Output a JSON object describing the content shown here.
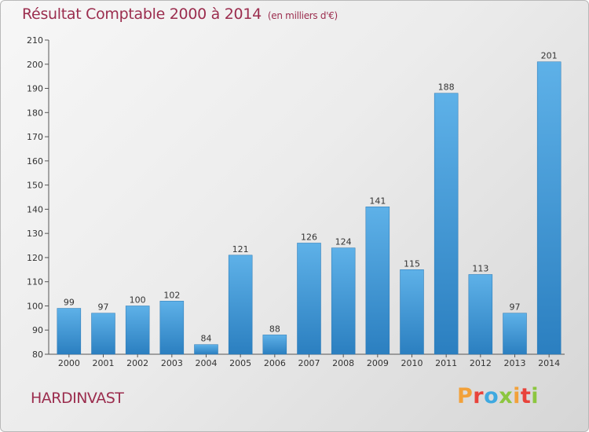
{
  "header": {
    "title": "Résultat Comptable 2000 à 2014",
    "subtitle": "(en milliers d'€)"
  },
  "commune": "HARDINVAST",
  "logo": {
    "letters": [
      "P",
      "r",
      "o",
      "x",
      "i",
      "t",
      "i"
    ],
    "colors": [
      "#f2a13a",
      "#e8433b",
      "#3fa9e0",
      "#8cc63f",
      "#f2a13a",
      "#e8433b",
      "#8cc63f"
    ]
  },
  "colors": {
    "bar_light": "#5eb1e8",
    "bar_dark": "#2b7fc0",
    "title": "#9b2d4e"
  },
  "chart_data": {
    "type": "bar",
    "title": "Résultat Comptable 2000 à 2014",
    "subtitle": "(en milliers d'€)",
    "categories": [
      "2000",
      "2001",
      "2002",
      "2003",
      "2004",
      "2005",
      "2006",
      "2007",
      "2008",
      "2009",
      "2010",
      "2011",
      "2012",
      "2013",
      "2014"
    ],
    "values": [
      99,
      97,
      100,
      102,
      84,
      121,
      88,
      126,
      124,
      141,
      115,
      188,
      113,
      97,
      201
    ],
    "ylim": [
      80,
      210
    ],
    "yticks": [
      80,
      90,
      100,
      110,
      120,
      130,
      140,
      150,
      160,
      170,
      180,
      190,
      200,
      210
    ],
    "grid": false,
    "data_labels": true
  }
}
